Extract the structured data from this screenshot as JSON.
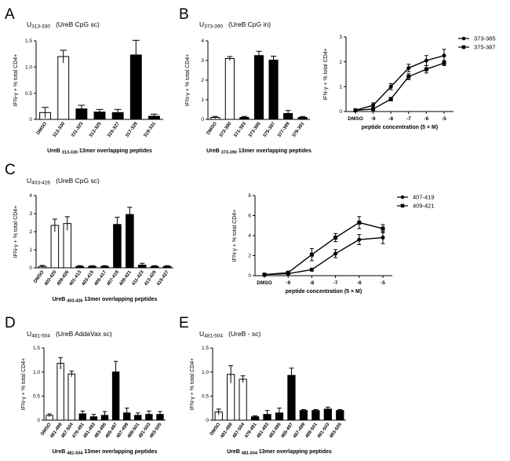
{
  "panels": [
    {
      "id": "A",
      "label": "A",
      "title_main": "U",
      "title_sub": "313-330",
      "title_rest": "   (UreB CpG sc)"
    },
    {
      "id": "B",
      "label": "B",
      "title_main": "U",
      "title_sub": "373-390",
      "title_rest": "   (UreB CpG in)"
    },
    {
      "id": "C",
      "label": "C",
      "title_main": "U",
      "title_sub": "403-426",
      "title_rest": "   (UreB CpG sc)"
    },
    {
      "id": "D",
      "label": "D",
      "title_main": "U",
      "title_sub": "481-504",
      "title_rest": "   (UreB AddaVax sc)"
    },
    {
      "id": "E",
      "label": "E",
      "title_main": "U",
      "title_sub": "481-504",
      "title_rest": "   (UreB - sc)"
    }
  ],
  "chart_data": [
    {
      "id": "A-bar",
      "type": "bar",
      "ylabel": "IFN-γ + % total CD4+",
      "xlabel_main": "UreB",
      "xlabel_sub": "313-330",
      "xlabel_rest": " 13mer overlapping peptides",
      "ylim": [
        0,
        1.5
      ],
      "yticks": [
        "0",
        "0.5",
        "1.0",
        "1.5"
      ],
      "categories": [
        "DMSO",
        "313-330",
        "311-323",
        "313-325",
        "315-327",
        "317-329",
        "319-331"
      ],
      "fills": [
        "open",
        "open",
        "solid",
        "solid",
        "solid",
        "solid",
        "solid"
      ],
      "values": [
        0.13,
        1.2,
        0.2,
        0.14,
        0.13,
        1.23,
        0.06
      ],
      "errors": [
        0.1,
        0.12,
        0.07,
        0.05,
        0.06,
        0.28,
        0.04
      ]
    },
    {
      "id": "B-bar",
      "type": "bar",
      "ylabel": "IFN-γ + % total CD4+",
      "xlabel_main": "UreB",
      "xlabel_sub": "373-390",
      "xlabel_rest": " 13mer overlapping peptides",
      "ylim": [
        0,
        4
      ],
      "yticks": [
        "0",
        "1",
        "2",
        "3",
        "4"
      ],
      "categories": [
        "DMSO",
        "373-390",
        "371-383",
        "373-385",
        "375-387",
        "377-389",
        "379-391"
      ],
      "fills": [
        "open",
        "open",
        "solid",
        "solid",
        "solid",
        "solid",
        "solid"
      ],
      "values": [
        0.1,
        3.1,
        0.1,
        3.25,
        3.02,
        0.3,
        0.1
      ],
      "errors": [
        0.05,
        0.1,
        0.05,
        0.22,
        0.2,
        0.15,
        0.05
      ]
    },
    {
      "id": "B-line",
      "type": "line",
      "ylabel": "IFN-γ + % total CD4+",
      "xlabel": "peptide concentration (5 × M)",
      "x": [
        "DMSO",
        "-9",
        "-8",
        "-7",
        "-6",
        "-5"
      ],
      "ylim": [
        0,
        3
      ],
      "yticks": [
        "0",
        "1",
        "2",
        "3"
      ],
      "series": [
        {
          "name": "373-385",
          "marker": "circle",
          "values": [
            0.05,
            0.25,
            1.0,
            1.75,
            2.05,
            2.25
          ],
          "errors": [
            0.03,
            0.1,
            0.12,
            0.15,
            0.2,
            0.25
          ]
        },
        {
          "name": "375-387",
          "marker": "square",
          "values": [
            0.05,
            0.1,
            0.5,
            1.4,
            1.7,
            1.95
          ],
          "errors": [
            0.03,
            0.05,
            0.07,
            0.12,
            0.15,
            0.1
          ]
        }
      ]
    },
    {
      "id": "C-bar",
      "type": "bar",
      "ylabel": "IFN-γ + % total CD4+",
      "xlabel_main": "UreB",
      "xlabel_sub": "403-426",
      "xlabel_rest": " 13mer overlapping peptides",
      "ylim": [
        0,
        4
      ],
      "yticks": [
        "0",
        "1",
        "2",
        "3",
        "4"
      ],
      "categories": [
        "DMSO",
        "403-420",
        "409-426",
        "401-413",
        "403-415",
        "405-417",
        "407-419",
        "409-421",
        "411-423",
        "413-425",
        "415-427"
      ],
      "fills": [
        "open",
        "open",
        "open",
        "solid",
        "solid",
        "solid",
        "solid",
        "solid",
        "solid",
        "solid",
        "solid"
      ],
      "values": [
        0.08,
        2.35,
        2.45,
        0.08,
        0.08,
        0.08,
        2.4,
        2.95,
        0.15,
        0.08,
        0.08
      ],
      "errors": [
        0.05,
        0.35,
        0.38,
        0.04,
        0.04,
        0.04,
        0.4,
        0.4,
        0.1,
        0.04,
        0.04
      ]
    },
    {
      "id": "C-line",
      "type": "line",
      "ylabel": "IFN-γ + % total CD4+",
      "xlabel": "peptide concentration (5 × M)",
      "x": [
        "DMSO",
        "-9",
        "-8",
        "-7",
        "-6",
        "-5"
      ],
      "ylim": [
        0,
        8
      ],
      "yticks": [
        "0",
        "2",
        "4",
        "6",
        "8"
      ],
      "series": [
        {
          "name": "407-419",
          "marker": "circle",
          "values": [
            0.1,
            0.2,
            0.6,
            2.2,
            3.6,
            3.8
          ],
          "errors": [
            0.05,
            0.1,
            0.15,
            0.4,
            0.5,
            0.6
          ]
        },
        {
          "name": "409-421",
          "marker": "square",
          "values": [
            0.1,
            0.3,
            2.1,
            3.8,
            5.3,
            4.7
          ],
          "errors": [
            0.05,
            0.1,
            0.6,
            0.4,
            0.6,
            0.4
          ]
        }
      ]
    },
    {
      "id": "D-bar",
      "type": "bar",
      "ylabel": "IFN-γ + % total CD4+",
      "xlabel_main": "UreB",
      "xlabel_sub": "481-504",
      "xlabel_rest": " 13mer overlapping peptides",
      "ylim": [
        0,
        1.5
      ],
      "yticks": [
        "0",
        "0.5",
        "1.0",
        "1.5"
      ],
      "categories": [
        "DMSO",
        "481-498",
        "487-504",
        "479-491",
        "481-493",
        "483-495",
        "485-497",
        "487-499",
        "489-501",
        "491-503",
        "493-505"
      ],
      "fills": [
        "open",
        "open",
        "open",
        "solid",
        "solid",
        "solid",
        "solid",
        "solid",
        "solid",
        "solid",
        "solid"
      ],
      "values": [
        0.1,
        1.18,
        0.96,
        0.13,
        0.07,
        0.1,
        1.0,
        0.15,
        0.1,
        0.12,
        0.12
      ],
      "errors": [
        0.03,
        0.12,
        0.06,
        0.06,
        0.05,
        0.08,
        0.22,
        0.1,
        0.05,
        0.07,
        0.06
      ]
    },
    {
      "id": "E-bar",
      "type": "bar",
      "ylabel": "IFN-γ + % total CD4+",
      "xlabel_main": "UreB",
      "xlabel_sub": "481-504",
      "xlabel_rest": " 13mer overlapping peptides",
      "ylim": [
        0,
        1.5
      ],
      "yticks": [
        "0",
        "0.5",
        "1.0",
        "1.5"
      ],
      "categories": [
        "DMSO",
        "481-498",
        "487-504",
        "479-491",
        "481-493",
        "483-495",
        "485-497",
        "487-499",
        "489-501",
        "491-503",
        "493-505"
      ],
      "fills": [
        "open",
        "open",
        "open",
        "solid",
        "solid",
        "solid",
        "solid",
        "solid",
        "solid",
        "solid",
        "solid"
      ],
      "values": [
        0.17,
        0.95,
        0.85,
        0.07,
        0.12,
        0.15,
        0.93,
        0.2,
        0.2,
        0.23,
        0.2
      ],
      "errors": [
        0.06,
        0.18,
        0.07,
        0.02,
        0.08,
        0.1,
        0.15,
        0.02,
        0.02,
        0.04,
        0.02
      ]
    }
  ]
}
